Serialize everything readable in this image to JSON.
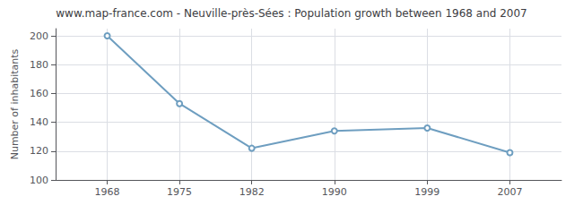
{
  "chart_data": {
    "type": "line",
    "title": "www.map-france.com - Neuville-près-Sées : Population growth between 1968 and 2007",
    "ylabel": "Number of inhabitants",
    "x": [
      1968,
      1975,
      1982,
      1990,
      1999,
      2007
    ],
    "values": [
      200,
      153,
      122,
      134,
      136,
      119
    ],
    "color": "#6e9ec0",
    "marker": "circle",
    "xlim": [
      1963,
      2012
    ],
    "ylim": [
      100,
      205
    ],
    "xticks": [
      1968,
      1975,
      1982,
      1990,
      1999,
      2007
    ],
    "yticks": [
      100,
      120,
      140,
      160,
      180,
      200
    ],
    "grid": true
  }
}
